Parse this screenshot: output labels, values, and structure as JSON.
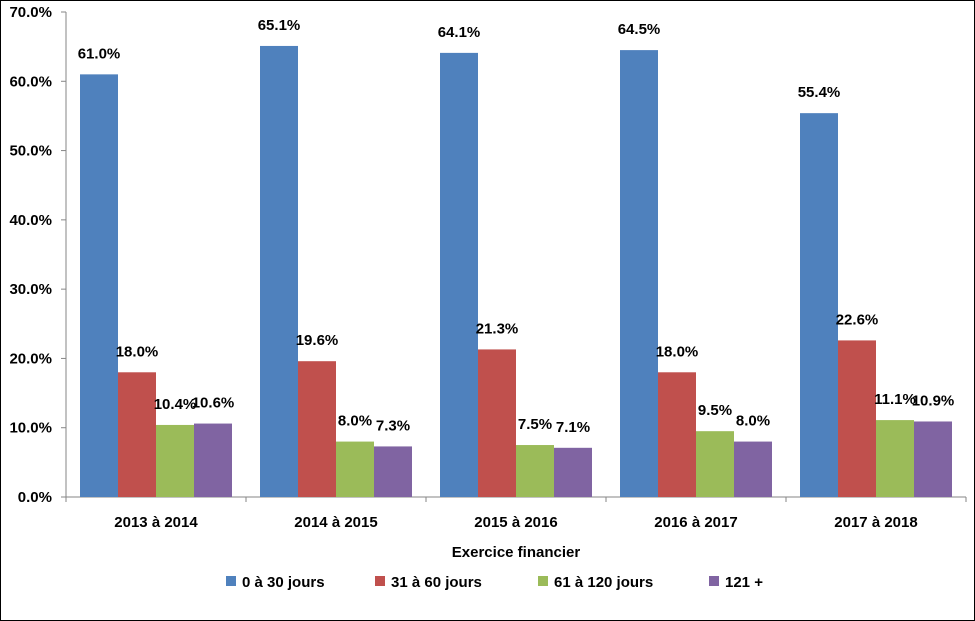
{
  "chart_data": {
    "type": "bar",
    "title": "",
    "xlabel": "Exercice financier",
    "ylabel": "",
    "ylim": [
      0,
      70
    ],
    "ytick_values": [
      0,
      10,
      20,
      30,
      40,
      50,
      60,
      70
    ],
    "ytick_labels": [
      "0.0%",
      "10.0%",
      "20.0%",
      "30.0%",
      "40.0%",
      "50.0%",
      "60.0%",
      "70.0%"
    ],
    "categories": [
      "2013 à 2014",
      "2014 à 2015",
      "2015 à 2016",
      "2016 à 2017",
      "2017 à 2018"
    ],
    "series": [
      {
        "name": "0 à 30 jours",
        "color": "#4F81BD",
        "values": [
          61.0,
          65.1,
          64.1,
          64.5,
          55.4
        ],
        "labels": [
          "61.0%",
          "65.1%",
          "64.1%",
          "64.5%",
          "55.4%"
        ]
      },
      {
        "name": "31 à 60 jours",
        "color": "#C0504D",
        "values": [
          18.0,
          19.6,
          21.3,
          18.0,
          22.6
        ],
        "labels": [
          "18.0%",
          "19.6%",
          "21.3%",
          "18.0%",
          "22.6%"
        ]
      },
      {
        "name": "61 à 120 jours",
        "color": "#9BBB59",
        "values": [
          10.4,
          8.0,
          7.5,
          9.5,
          11.1
        ],
        "labels": [
          "10.4%",
          "8.0%",
          "7.5%",
          "9.5%",
          "11.1%"
        ]
      },
      {
        "name": "121 +",
        "color": "#8064A2",
        "values": [
          10.6,
          7.3,
          7.1,
          8.0,
          10.9
        ],
        "labels": [
          "10.6%",
          "7.3%",
          "7.1%",
          "8.0%",
          "10.9%"
        ]
      }
    ],
    "grid": false,
    "legend_position": "bottom"
  }
}
